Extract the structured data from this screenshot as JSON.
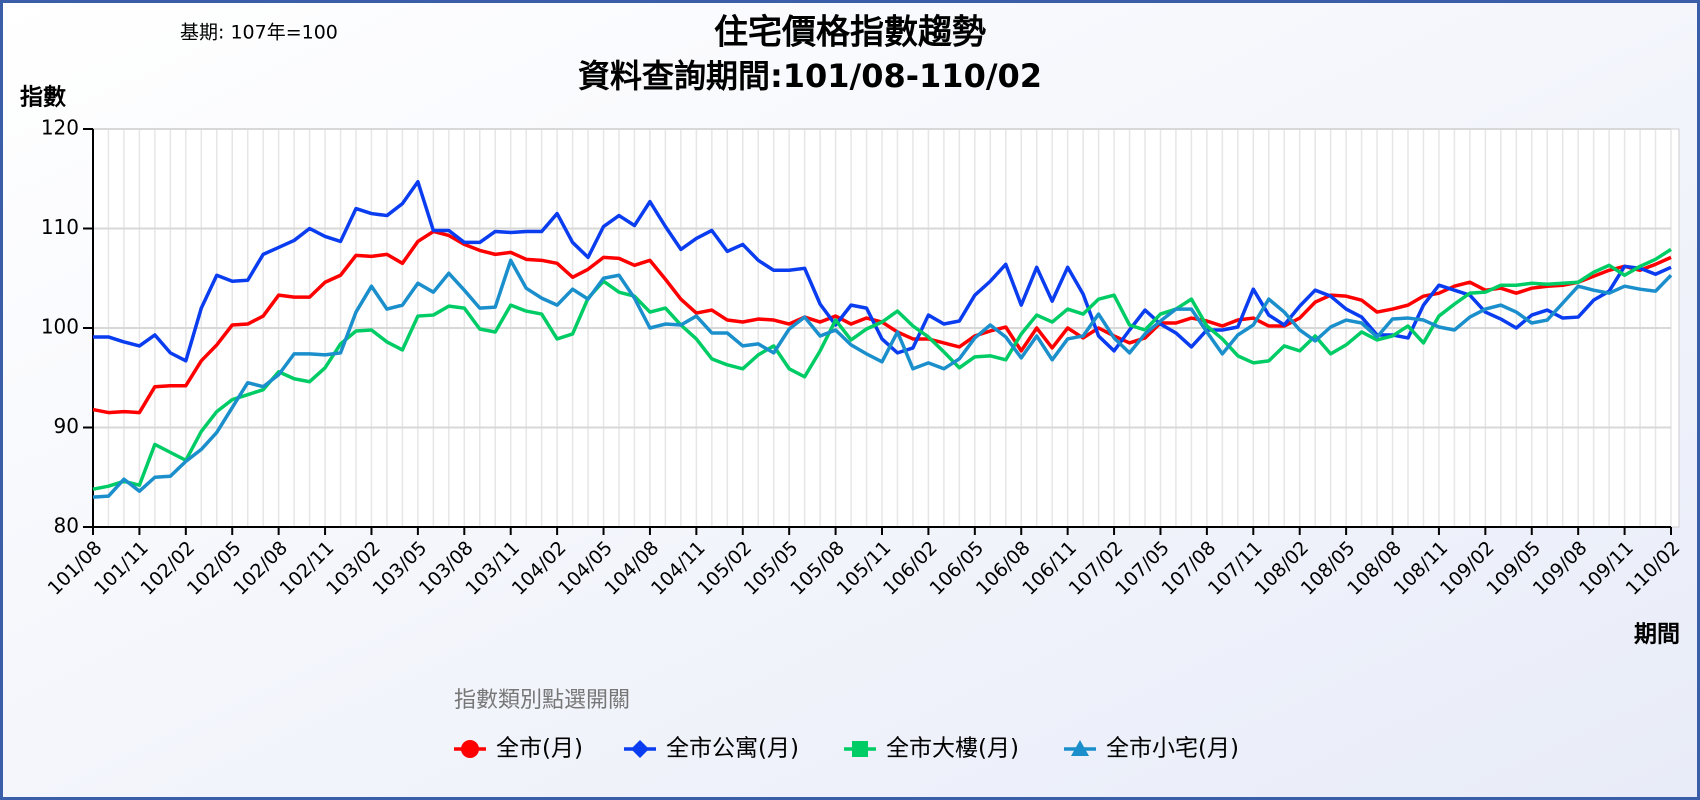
{
  "chart_data": {
    "type": "line",
    "title": "住宅價格指數趨勢",
    "subtitle": "資料查詢期間:101/08-110/02",
    "annotation": "基期:  107年=100",
    "y_label": "指數",
    "x_label": "期間",
    "legend_title": "指數類別點選開關",
    "ylim": [
      80,
      120
    ],
    "yticks": [
      80,
      90,
      100,
      110,
      120
    ],
    "grid": true,
    "legend": "bottom",
    "categories": [
      "101/08",
      null,
      null,
      "101/11",
      null,
      null,
      "102/02",
      null,
      null,
      "102/05",
      null,
      null,
      "102/08",
      null,
      null,
      "102/11",
      null,
      null,
      "103/02",
      null,
      null,
      "103/05",
      null,
      null,
      "103/08",
      null,
      null,
      "103/11",
      null,
      null,
      "104/02",
      null,
      null,
      "104/05",
      null,
      null,
      "104/08",
      null,
      null,
      "104/11",
      null,
      null,
      "105/02",
      null,
      null,
      "105/05",
      null,
      null,
      "105/08",
      null,
      null,
      "105/11",
      null,
      null,
      "106/02",
      null,
      null,
      "106/05",
      null,
      null,
      "106/08",
      null,
      null,
      "106/11",
      null,
      null,
      "107/02",
      null,
      null,
      "107/05",
      null,
      null,
      "107/08",
      null,
      null,
      "107/11",
      null,
      null,
      "108/02",
      null,
      null,
      "108/05",
      null,
      null,
      "108/08",
      null,
      null,
      "108/11",
      null,
      null,
      "109/02",
      null,
      null,
      "109/05",
      null,
      null,
      "109/08",
      null,
      null,
      "109/11",
      null,
      null,
      "110/02"
    ],
    "series": [
      {
        "name": "全市(月)",
        "color": "#ff0000",
        "marker": "circle",
        "values": [
          91.8,
          91.5,
          91.6,
          91.5,
          94.1,
          94.2,
          94.2,
          96.7,
          98.3,
          100.3,
          100.4,
          101.2,
          103.3,
          103.1,
          103.1,
          104.6,
          105.3,
          107.3,
          107.2,
          107.4,
          106.5,
          108.7,
          109.7,
          109.3,
          108.4,
          107.8,
          107.4,
          107.6,
          106.9,
          106.8,
          106.5,
          105.1,
          105.9,
          107.1,
          107.0,
          106.3,
          106.8,
          104.9,
          102.9,
          101.5,
          101.8,
          100.8,
          100.6,
          100.9,
          100.8,
          100.4,
          101.1,
          100.6,
          101.2,
          100.4,
          101.0,
          100.6,
          99.6,
          98.9,
          98.9,
          98.5,
          98.1,
          99.2,
          99.7,
          100.1,
          97.7,
          100.0,
          98.0,
          100.0,
          99.0,
          100.0,
          99.2,
          98.5,
          99.0,
          100.5,
          100.5,
          101.0,
          100.7,
          100.2,
          100.8,
          101.0,
          100.2,
          100.2,
          101.0,
          102.6,
          103.3,
          103.2,
          102.8,
          101.6,
          101.9,
          102.3,
          103.2,
          103.5,
          104.2,
          104.6,
          103.8,
          104.0,
          103.5,
          104.0,
          104.2,
          104.3,
          104.6,
          105.2,
          105.8,
          106.2,
          105.8,
          106.4,
          107.1
        ]
      },
      {
        "name": "全市公寓(月)",
        "color": "#0a3cf0",
        "marker": "diamond",
        "values": [
          99.1,
          99.1,
          98.6,
          98.2,
          99.3,
          97.5,
          96.7,
          102.0,
          105.3,
          104.7,
          104.8,
          107.4,
          108.1,
          108.8,
          110.0,
          109.2,
          108.7,
          112.0,
          111.5,
          111.3,
          112.5,
          114.7,
          109.8,
          109.8,
          108.6,
          108.6,
          109.7,
          109.6,
          109.7,
          109.7,
          111.5,
          108.6,
          107.1,
          110.2,
          111.3,
          110.3,
          112.7,
          110.2,
          107.9,
          109.0,
          109.8,
          107.7,
          108.4,
          106.8,
          105.8,
          105.8,
          106.0,
          102.4,
          100.3,
          102.3,
          102.0,
          98.9,
          97.5,
          98.0,
          101.3,
          100.4,
          100.7,
          103.3,
          104.7,
          106.4,
          102.3,
          106.1,
          102.7,
          106.1,
          103.4,
          99.2,
          97.7,
          99.8,
          101.8,
          100.4,
          99.5,
          98.1,
          99.8,
          99.8,
          100.1,
          103.9,
          101.3,
          100.3,
          102.2,
          103.8,
          103.2,
          101.9,
          101.1,
          99.3,
          99.3,
          99.0,
          102.3,
          104.3,
          103.8,
          103.3,
          101.6,
          100.9,
          100.0,
          101.3,
          101.8,
          101.0,
          101.1,
          102.8,
          103.7,
          106.2,
          106.0,
          105.4,
          106.1
        ]
      },
      {
        "name": "全市大樓(月)",
        "color": "#00cc66",
        "marker": "square",
        "values": [
          83.8,
          84.1,
          84.6,
          84.2,
          88.3,
          87.5,
          86.7,
          89.6,
          91.6,
          92.8,
          93.3,
          93.8,
          95.6,
          94.9,
          94.6,
          96.0,
          98.4,
          99.7,
          99.8,
          98.6,
          97.8,
          101.2,
          101.3,
          102.2,
          102.0,
          99.9,
          99.6,
          102.3,
          101.7,
          101.4,
          98.9,
          99.4,
          103.0,
          104.7,
          103.6,
          103.2,
          101.6,
          102.0,
          100.3,
          98.9,
          96.9,
          96.3,
          95.9,
          97.3,
          98.2,
          95.9,
          95.1,
          97.7,
          100.8,
          98.8,
          99.9,
          100.6,
          101.7,
          100.2,
          99.1,
          97.6,
          96.0,
          97.1,
          97.2,
          96.8,
          99.4,
          101.3,
          100.6,
          101.9,
          101.4,
          102.9,
          103.3,
          100.3,
          99.8,
          101.4,
          101.9,
          102.9,
          100.2,
          98.9,
          97.2,
          96.5,
          96.7,
          98.2,
          97.7,
          99.2,
          97.4,
          98.3,
          99.6,
          98.8,
          99.2,
          100.2,
          98.5,
          101.2,
          102.4,
          103.5,
          103.6,
          104.3,
          104.3,
          104.5,
          104.4,
          104.5,
          104.6,
          105.6,
          106.3,
          105.3,
          106.2,
          106.9,
          107.9
        ]
      },
      {
        "name": "全市小宅(月)",
        "color": "#1a8fcc",
        "marker": "triangle",
        "values": [
          83.0,
          83.1,
          84.8,
          83.6,
          85.0,
          85.1,
          86.6,
          87.8,
          89.5,
          92.0,
          94.5,
          94.1,
          95.3,
          97.4,
          97.4,
          97.3,
          97.5,
          101.6,
          104.2,
          101.9,
          102.3,
          104.5,
          103.6,
          105.5,
          103.8,
          102.0,
          102.1,
          106.8,
          104.0,
          103.0,
          102.3,
          103.9,
          102.9,
          105.0,
          105.3,
          103.0,
          100.0,
          100.4,
          100.3,
          101.2,
          99.5,
          99.5,
          98.2,
          98.4,
          97.5,
          99.9,
          101.1,
          99.2,
          99.8,
          98.3,
          97.4,
          96.6,
          99.6,
          95.9,
          96.5,
          95.9,
          96.9,
          99.0,
          100.3,
          99.1,
          97.0,
          99.2,
          96.8,
          98.9,
          99.2,
          101.4,
          99.0,
          97.5,
          99.4,
          100.7,
          101.9,
          101.9,
          99.6,
          97.4,
          99.3,
          100.3,
          102.9,
          101.6,
          99.8,
          98.7,
          100.1,
          100.8,
          100.5,
          99.1,
          100.9,
          101.0,
          100.8,
          100.1,
          99.8,
          101.1,
          101.9,
          102.3,
          101.6,
          100.5,
          100.8,
          102.5,
          104.2,
          103.8,
          103.5,
          104.2,
          103.9,
          103.7,
          105.3
        ]
      }
    ]
  }
}
